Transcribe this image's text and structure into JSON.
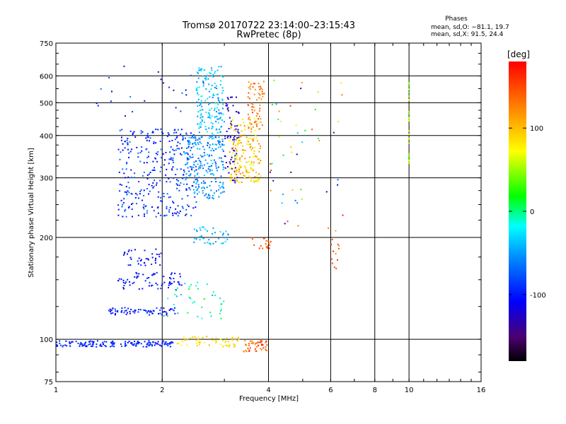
{
  "chart_data": {
    "type": "scatter",
    "title": "Tromsø 20170722 23:14:00–23:15:43",
    "subtitle": "RwPretec (8p)",
    "xlabel": "Frequency [MHz]",
    "ylabel": "Stationary phase Virtual Height [km]",
    "x_scale": "log",
    "y_scale": "log",
    "xlim": [
      1,
      16
    ],
    "ylim": [
      75,
      750
    ],
    "x_ticks": [
      1,
      2,
      4,
      6,
      8,
      10,
      16
    ],
    "y_ticks": [
      75,
      100,
      200,
      300,
      400,
      500,
      600,
      750
    ],
    "phase_title": "Phases",
    "phase_lines": [
      "mean, sd,O: −81.1, 19.7",
      "mean, sd,X:  91.5, 24.4"
    ],
    "colorbar": {
      "label": "[deg]",
      "range": [
        -180,
        180
      ],
      "ticks": [
        100,
        0,
        -100
      ]
    },
    "series": [
      {
        "clusters": [
          {
            "x": [
              1.0,
              2.15
            ],
            "y": [
              95,
              99
            ],
            "phase": [
              -110,
              -80
            ],
            "n": 160
          },
          {
            "x": [
              2.2,
              3.3
            ],
            "y": [
              95,
              102
            ],
            "phase": [
              60,
              110
            ],
            "n": 60
          },
          {
            "x": [
              3.4,
              4.0
            ],
            "y": [
              92,
              100
            ],
            "phase": [
              120,
              170
            ],
            "n": 45
          },
          {
            "x": [
              1.4,
              2.2
            ],
            "y": [
              118,
              124
            ],
            "phase": [
              -120,
              -80
            ],
            "n": 70
          },
          {
            "x": [
              1.5,
              2.3
            ],
            "y": [
              140,
              158
            ],
            "phase": [
              -115,
              -85
            ],
            "n": 70
          },
          {
            "x": [
              1.55,
              2.0
            ],
            "y": [
              165,
              185
            ],
            "phase": [
              -120,
              -90
            ],
            "n": 40
          },
          {
            "x": [
              1.5,
              2.5
            ],
            "y": [
              230,
              420
            ],
            "phase": [
              -120,
              -60
            ],
            "n": 320
          },
          {
            "x": [
              2.3,
              3.0
            ],
            "y": [
              260,
              400
            ],
            "phase": [
              -80,
              -30
            ],
            "n": 220
          },
          {
            "x": [
              2.5,
              3.0
            ],
            "y": [
              400,
              640
            ],
            "phase": [
              -60,
              -20
            ],
            "n": 160
          },
          {
            "x": [
              3.0,
              3.3
            ],
            "y": [
              290,
              520
            ],
            "phase": [
              -150,
              -100
            ],
            "n": 70
          },
          {
            "x": [
              3.1,
              3.8
            ],
            "y": [
              290,
              450
            ],
            "phase": [
              60,
              130
            ],
            "n": 180
          },
          {
            "x": [
              3.5,
              3.9
            ],
            "y": [
              420,
              580
            ],
            "phase": [
              110,
              160
            ],
            "n": 60
          },
          {
            "x": [
              2.45,
              3.1
            ],
            "y": [
              190,
              215
            ],
            "phase": [
              -60,
              -20
            ],
            "n": 40
          },
          {
            "x": [
              2.0,
              3.0
            ],
            "y": [
              115,
              150
            ],
            "phase": [
              -50,
              20
            ],
            "n": 40
          },
          {
            "x": [
              3.6,
              4.1
            ],
            "y": [
              185,
              200
            ],
            "phase": [
              130,
              160
            ],
            "n": 18
          },
          {
            "x": [
              4.0,
              6.5
            ],
            "y": [
              200,
              600
            ],
            "phase": [
              -150,
              170
            ],
            "n": 50
          },
          {
            "x": [
              10.0,
              10.0
            ],
            "y": [
              330,
              580
            ],
            "phase": [
              20,
              80
            ],
            "n": 30
          },
          {
            "x": [
              6.0,
              6.4
            ],
            "y": [
              160,
              200
            ],
            "phase": [
              120,
              170
            ],
            "n": 12
          },
          {
            "x": [
              1.3,
              3.0
            ],
            "y": [
              450,
              650
            ],
            "phase": [
              -150,
              -60
            ],
            "n": 25
          }
        ]
      }
    ]
  }
}
